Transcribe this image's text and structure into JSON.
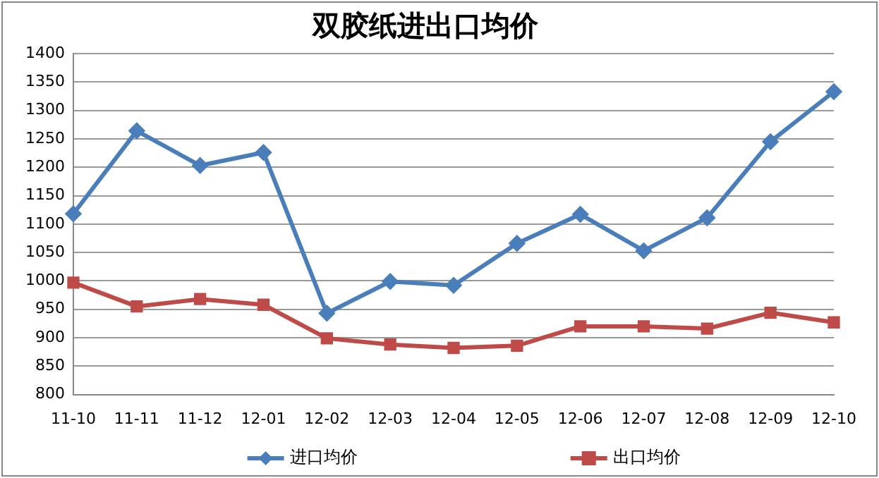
{
  "chart_data": {
    "type": "line",
    "title": "双胶纸进出口均价",
    "categories": [
      "11-10",
      "11-11",
      "11-12",
      "12-01",
      "12-02",
      "12-03",
      "12-04",
      "12-05",
      "12-06",
      "12-07",
      "12-08",
      "12-09",
      "12-10"
    ],
    "series": [
      {
        "name": "进口均价",
        "color": "#4a7ebb",
        "marker": "diamond",
        "values": [
          1118,
          1264,
          1203,
          1226,
          943,
          999,
          992,
          1066,
          1117,
          1053,
          1111,
          1245,
          1333
        ]
      },
      {
        "name": "出口均价",
        "color": "#be4b48",
        "marker": "square",
        "values": [
          997,
          955,
          968,
          958,
          899,
          888,
          882,
          886,
          920,
          920,
          916,
          944,
          927
        ]
      }
    ],
    "ylim": [
      800,
      1400
    ],
    "yticks": [
      800,
      850,
      900,
      950,
      1000,
      1050,
      1100,
      1150,
      1200,
      1250,
      1300,
      1350,
      1400
    ],
    "grid": "y",
    "legend": "bottom",
    "line_style": "solid"
  }
}
